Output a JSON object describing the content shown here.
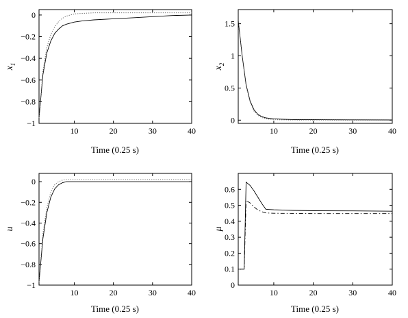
{
  "chart_data": [
    {
      "type": "line",
      "xlabel": "Time (0.25 s)",
      "ylabel": "x",
      "ylabel_sub": "1",
      "xlim": [
        1,
        40
      ],
      "ylim": [
        -1,
        0.05
      ],
      "xticks": [
        10,
        20,
        30,
        40
      ],
      "yticks": [
        0,
        -0.2,
        -0.4,
        -0.6,
        -0.8,
        -1
      ],
      "ytick_labels": [
        "0",
        "−0.2",
        "−0.4",
        "−0.6",
        "−0.8",
        "−1"
      ],
      "grid": false,
      "series": [
        {
          "style": "solid",
          "x": [
            1,
            2,
            3,
            4,
            5,
            6,
            7,
            8,
            10,
            12,
            15,
            20,
            25,
            30,
            35,
            40
          ],
          "y": [
            -0.95,
            -0.55,
            -0.35,
            -0.24,
            -0.17,
            -0.13,
            -0.1,
            -0.085,
            -0.065,
            -0.055,
            -0.045,
            -0.035,
            -0.025,
            -0.015,
            -0.005,
            0.0
          ]
        },
        {
          "style": "dotted",
          "x": [
            1,
            2,
            3,
            4,
            5,
            6,
            7,
            8,
            10,
            12,
            15,
            20,
            25,
            30,
            35,
            40
          ],
          "y": [
            -0.95,
            -0.52,
            -0.3,
            -0.18,
            -0.11,
            -0.06,
            -0.03,
            -0.01,
            0.01,
            0.015,
            0.02,
            0.02,
            0.02,
            0.02,
            0.02,
            0.02
          ]
        }
      ]
    },
    {
      "type": "line",
      "xlabel": "Time (0.25 s)",
      "ylabel": "x",
      "ylabel_sub": "2",
      "xlim": [
        1,
        40
      ],
      "ylim": [
        -0.05,
        1.72
      ],
      "xticks": [
        10,
        20,
        30,
        40
      ],
      "yticks": [
        0,
        0.5,
        1,
        1.5
      ],
      "ytick_labels": [
        "0",
        "0.5",
        "1",
        "1.5"
      ],
      "grid": false,
      "series": [
        {
          "style": "solid",
          "x": [
            1,
            2,
            3,
            4,
            5,
            6,
            7,
            8,
            10,
            12,
            15,
            20,
            30,
            40
          ],
          "y": [
            1.55,
            1.0,
            0.55,
            0.3,
            0.16,
            0.09,
            0.055,
            0.035,
            0.02,
            0.015,
            0.01,
            0.008,
            0.005,
            0.003
          ]
        },
        {
          "style": "dotted",
          "x": [
            1,
            2,
            3,
            4,
            5,
            6,
            7,
            8,
            10,
            12,
            15,
            20,
            30,
            40
          ],
          "y": [
            1.52,
            0.98,
            0.53,
            0.28,
            0.14,
            0.075,
            0.04,
            0.02,
            0.008,
            0.004,
            0.002,
            0.001,
            0.0,
            0.0
          ]
        }
      ]
    },
    {
      "type": "line",
      "xlabel": "Time (0.25 s)",
      "ylabel": "u",
      "ylabel_sub": "",
      "xlim": [
        1,
        40
      ],
      "ylim": [
        -1,
        0.08
      ],
      "xticks": [
        10,
        20,
        30,
        40
      ],
      "yticks": [
        0,
        -0.2,
        -0.4,
        -0.6,
        -0.8,
        -1
      ],
      "ytick_labels": [
        "0",
        "−0.2",
        "−0.4",
        "−0.6",
        "−0.8",
        "−1"
      ],
      "grid": false,
      "series": [
        {
          "style": "solid",
          "x": [
            1,
            2,
            3,
            4,
            5,
            6,
            7,
            8,
            9,
            10,
            12,
            15,
            20,
            30,
            40
          ],
          "y": [
            -0.97,
            -0.55,
            -0.3,
            -0.15,
            -0.07,
            -0.03,
            -0.01,
            0.0,
            0.0,
            0.0,
            0.0,
            0.0,
            0.0,
            0.0,
            0.0
          ]
        },
        {
          "style": "dotted",
          "x": [
            1,
            2,
            3,
            4,
            5,
            6,
            7,
            8,
            9,
            10,
            12,
            15,
            20,
            30,
            40
          ],
          "y": [
            -0.97,
            -0.5,
            -0.25,
            -0.1,
            -0.03,
            0.0,
            0.015,
            0.02,
            0.02,
            0.02,
            0.02,
            0.02,
            0.02,
            0.02,
            0.02
          ]
        }
      ]
    },
    {
      "type": "line",
      "xlabel": "Time (0.25 s)",
      "ylabel": "μ",
      "ylabel_sub": "",
      "xlim": [
        1,
        40
      ],
      "ylim": [
        0,
        0.7
      ],
      "xticks": [
        10,
        20,
        30,
        40
      ],
      "yticks": [
        0,
        0.1,
        0.2,
        0.3,
        0.4,
        0.5,
        0.6
      ],
      "ytick_labels": [
        "0",
        "0.1",
        "0.2",
        "0.3",
        "0.4",
        "0.5",
        "0.6"
      ],
      "grid": false,
      "series": [
        {
          "style": "solid",
          "x": [
            1.5,
            2.5,
            3,
            4,
            5,
            6,
            7,
            8,
            10,
            15,
            20,
            30,
            40
          ],
          "y": [
            0.1,
            0.1,
            0.645,
            0.625,
            0.59,
            0.55,
            0.51,
            0.475,
            0.472,
            0.468,
            0.466,
            0.465,
            0.463
          ]
        },
        {
          "style": "dashdot",
          "x": [
            1.5,
            2.5,
            3,
            4,
            5,
            6,
            7,
            8,
            10,
            15,
            20,
            30,
            40
          ],
          "y": [
            0.1,
            0.1,
            0.53,
            0.515,
            0.49,
            0.47,
            0.46,
            0.452,
            0.45,
            0.449,
            0.448,
            0.448,
            0.448
          ]
        }
      ]
    }
  ]
}
